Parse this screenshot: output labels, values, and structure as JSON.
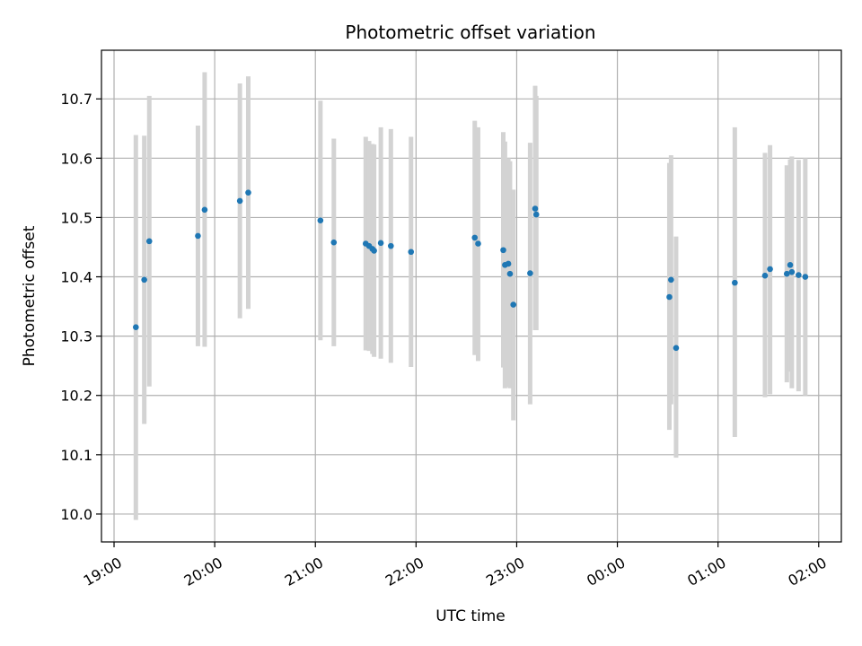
{
  "chart_data": {
    "type": "scatter",
    "title": "Photometric offset variation",
    "xlabel": "UTC time",
    "ylabel": "Photometric offset",
    "x_tick_labels": [
      "19:00",
      "20:00",
      "21:00",
      "22:00",
      "23:00",
      "00:00",
      "01:00",
      "02:00"
    ],
    "y_tick_labels": [
      "10.0",
      "10.1",
      "10.2",
      "10.3",
      "10.4",
      "10.5",
      "10.6",
      "10.7"
    ],
    "y_ticks": [
      10.0,
      10.1,
      10.2,
      10.3,
      10.4,
      10.5,
      10.6,
      10.7
    ],
    "xlim": [
      "2023-01-01T18:52:30",
      "2023-01-02T02:13:30"
    ],
    "ylim": [
      9.953,
      10.782
    ],
    "grid": true,
    "colors": {
      "points": "#1f77b4",
      "error_bars": "#d3d3d3"
    },
    "points": [
      {
        "time": "2023-01-01T19:13:00",
        "y": 10.315,
        "err_low": 9.99,
        "err_high": 10.639
      },
      {
        "time": "2023-01-01T19:18:00",
        "y": 10.395,
        "err_low": 10.152,
        "err_high": 10.638
      },
      {
        "time": "2023-01-01T19:21:00",
        "y": 10.46,
        "err_low": 10.215,
        "err_high": 10.705
      },
      {
        "time": "2023-01-01T19:50:00",
        "y": 10.469,
        "err_low": 10.283,
        "err_high": 10.655
      },
      {
        "time": "2023-01-01T19:54:00",
        "y": 10.513,
        "err_low": 10.282,
        "err_high": 10.745
      },
      {
        "time": "2023-01-01T20:15:00",
        "y": 10.528,
        "err_low": 10.33,
        "err_high": 10.726
      },
      {
        "time": "2023-01-01T20:20:00",
        "y": 10.542,
        "err_low": 10.346,
        "err_high": 10.738
      },
      {
        "time": "2023-01-01T21:03:00",
        "y": 10.495,
        "err_low": 10.293,
        "err_high": 10.697
      },
      {
        "time": "2023-01-01T21:11:00",
        "y": 10.458,
        "err_low": 10.283,
        "err_high": 10.633
      },
      {
        "time": "2023-01-01T21:30:00",
        "y": 10.456,
        "err_low": 10.276,
        "err_high": 10.636
      },
      {
        "time": "2023-01-01T21:32:00",
        "y": 10.452,
        "err_low": 10.275,
        "err_high": 10.629
      },
      {
        "time": "2023-01-01T21:34:00",
        "y": 10.447,
        "err_low": 10.27,
        "err_high": 10.624
      },
      {
        "time": "2023-01-01T21:35:00",
        "y": 10.444,
        "err_low": 10.265,
        "err_high": 10.623
      },
      {
        "time": "2023-01-01T21:39:00",
        "y": 10.457,
        "err_low": 10.262,
        "err_high": 10.652
      },
      {
        "time": "2023-01-01T21:45:00",
        "y": 10.452,
        "err_low": 10.255,
        "err_high": 10.649
      },
      {
        "time": "2023-01-01T21:57:00",
        "y": 10.442,
        "err_low": 10.248,
        "err_high": 10.636
      },
      {
        "time": "2023-01-01T22:35:00",
        "y": 10.466,
        "err_low": 10.268,
        "err_high": 10.663
      },
      {
        "time": "2023-01-01T22:37:00",
        "y": 10.456,
        "err_low": 10.258,
        "err_high": 10.652
      },
      {
        "time": "2023-01-01T22:52:00",
        "y": 10.445,
        "err_low": 10.247,
        "err_high": 10.644
      },
      {
        "time": "2023-01-01T22:53:00",
        "y": 10.42,
        "err_low": 10.212,
        "err_high": 10.628
      },
      {
        "time": "2023-01-01T22:55:00",
        "y": 10.422,
        "err_low": 10.214,
        "err_high": 10.6
      },
      {
        "time": "2023-01-01T22:56:00",
        "y": 10.405,
        "err_low": 10.212,
        "err_high": 10.595
      },
      {
        "time": "2023-01-01T22:58:00",
        "y": 10.353,
        "err_low": 10.158,
        "err_high": 10.547
      },
      {
        "time": "2023-01-01T23:08:00",
        "y": 10.406,
        "err_low": 10.185,
        "err_high": 10.626
      },
      {
        "time": "2023-01-01T23:11:00",
        "y": 10.515,
        "err_low": 10.31,
        "err_high": 10.722
      },
      {
        "time": "2023-01-01T23:11:40",
        "y": 10.505,
        "err_low": 10.31,
        "err_high": 10.705
      },
      {
        "time": "2023-01-02T00:31:00",
        "y": 10.366,
        "err_low": 10.142,
        "err_high": 10.592
      },
      {
        "time": "2023-01-02T00:32:00",
        "y": 10.395,
        "err_low": 10.185,
        "err_high": 10.605
      },
      {
        "time": "2023-01-02T00:35:00",
        "y": 10.28,
        "err_low": 10.095,
        "err_high": 10.468
      },
      {
        "time": "2023-01-02T01:10:00",
        "y": 10.39,
        "err_low": 10.13,
        "err_high": 10.652
      },
      {
        "time": "2023-01-02T01:28:00",
        "y": 10.402,
        "err_low": 10.197,
        "err_high": 10.609
      },
      {
        "time": "2023-01-02T01:31:00",
        "y": 10.413,
        "err_low": 10.202,
        "err_high": 10.622
      },
      {
        "time": "2023-01-02T01:41:00",
        "y": 10.405,
        "err_low": 10.222,
        "err_high": 10.588
      },
      {
        "time": "2023-01-02T01:43:00",
        "y": 10.42,
        "err_low": 10.24,
        "err_high": 10.598
      },
      {
        "time": "2023-01-02T01:44:00",
        "y": 10.408,
        "err_low": 10.212,
        "err_high": 10.603
      },
      {
        "time": "2023-01-02T01:48:00",
        "y": 10.403,
        "err_low": 10.207,
        "err_high": 10.597
      },
      {
        "time": "2023-01-02T01:52:00",
        "y": 10.4,
        "err_low": 10.2,
        "err_high": 10.6
      }
    ]
  }
}
